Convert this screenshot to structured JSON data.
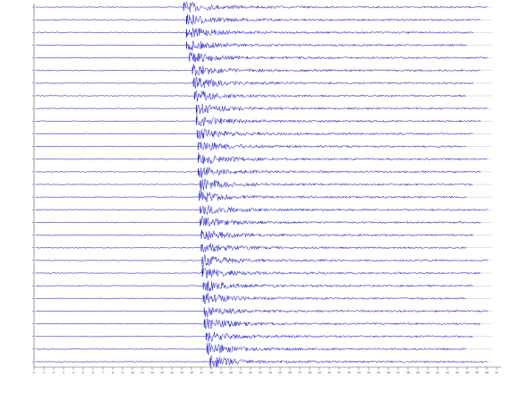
{
  "chart_data": {
    "type": "seismogram",
    "color": "#0000cc",
    "xlim": [
      0,
      47
    ],
    "xticks": [
      0,
      1,
      2,
      3,
      4,
      5,
      6,
      7,
      8,
      9,
      10,
      11,
      12,
      13,
      14,
      15,
      16,
      17,
      18,
      19,
      20,
      21,
      22,
      23,
      24,
      25,
      26,
      27,
      28,
      29,
      30,
      31,
      32,
      33,
      34,
      35,
      36,
      37,
      38,
      39,
      40,
      41,
      42,
      43,
      44,
      45,
      46,
      47
    ],
    "arrivals": [
      15.2,
      15.5,
      15.5,
      15.5,
      15.8,
      16.1,
      16.2,
      16.3,
      16.5,
      16.5,
      16.6,
      16.7,
      16.7,
      16.7,
      16.9,
      16.8,
      16.9,
      16.9,
      17.0,
      17.0,
      17.1,
      17.1,
      17.2,
      17.2,
      17.3,
      17.3,
      17.5,
      17.6,
      17.9
    ]
  }
}
